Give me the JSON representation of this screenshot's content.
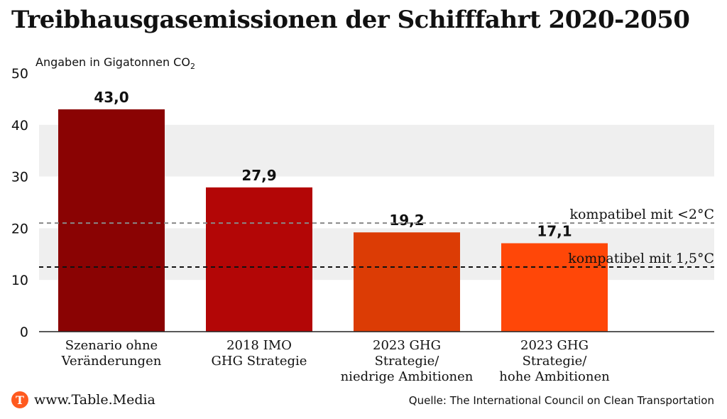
{
  "header": {
    "title": "Treibhausgasemissionen der Schifffahrt 2020-2050"
  },
  "brand": {
    "icon": "table-media-logo-icon",
    "icon_glyph": "T",
    "url": "www.Table.Media"
  },
  "source": "Quelle: The International Council on Clean Transportation",
  "colors": {
    "band": "#efefef",
    "bars": [
      "#8a0303",
      "#b30606",
      "#dc3c05",
      "#ff4708"
    ],
    "line_2c": "#888888",
    "line_15c": "#111111"
  },
  "chart_data": {
    "type": "bar",
    "title": "Treibhausgasemissionen der Schifffahrt 2020-2050",
    "ylabel": "Angaben in Gigatonnen CO",
    "ylabel_sub": "2",
    "ylim": [
      0,
      50
    ],
    "yticks": [
      0,
      10,
      20,
      30,
      40,
      50
    ],
    "grid": true,
    "categories": [
      [
        "Szenario ohne",
        "Veränderungen"
      ],
      [
        "2018 IMO",
        "GHG Strategie"
      ],
      [
        "2023 GHG",
        "Strategie/",
        "niedrige Ambitionen"
      ],
      [
        "2023 GHG",
        "Strategie/",
        "hohe Ambitionen"
      ]
    ],
    "values": [
      43.0,
      27.9,
      19.2,
      17.1
    ],
    "value_labels": [
      "43,0",
      "27,9",
      "19,2",
      "17,1"
    ],
    "reference_lines": [
      {
        "label": "kompatibel mit <2°C",
        "value": 21
      },
      {
        "label": "kompatibel mit 1,5°C",
        "value": 12.5
      }
    ]
  }
}
